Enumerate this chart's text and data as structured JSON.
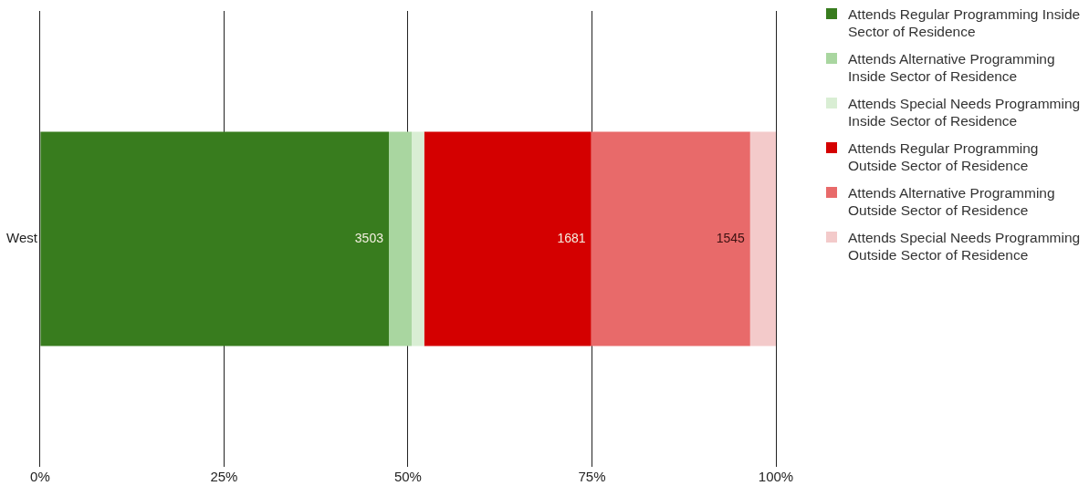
{
  "chart_data": {
    "type": "bar",
    "orientation": "horizontal",
    "stacked": true,
    "categories": [
      "West"
    ],
    "series": [
      {
        "name": "Attends Regular Programming Inside Sector of Residence",
        "color": "#387c1e",
        "values": [
          47.4
        ]
      },
      {
        "name": "Attends Alternative Programming Inside Sector of Residence",
        "color": "#a9d6a0",
        "values": [
          3.1
        ]
      },
      {
        "name": "Attends Special Needs Programming Inside Sector of Residence",
        "color": "#d9eed4",
        "values": [
          1.7
        ]
      },
      {
        "name": "Attends Regular Programming Outside Sector of Residence",
        "color": "#d40000",
        "values": [
          22.7
        ]
      },
      {
        "name": "Attends Alternative Programming Outside Sector of Residence",
        "color": "#e86a6a",
        "values": [
          21.6
        ]
      },
      {
        "name": "Attends Special Needs Programming Outside Sector of Residence",
        "color": "#f3caca",
        "values": [
          3.5
        ]
      }
    ],
    "annotations": [
      {
        "text": "3503",
        "x": 47.4,
        "y": "West"
      },
      {
        "text": "1681",
        "x": 74.9,
        "y": "West"
      },
      {
        "text": "1545",
        "x": 96.5,
        "y": "West"
      }
    ],
    "xlim": [
      0,
      100
    ],
    "xticks": [
      {
        "value": 0,
        "label": "0%"
      },
      {
        "value": 25,
        "label": "25%"
      },
      {
        "value": 50,
        "label": "50%"
      },
      {
        "value": 75,
        "label": "75%"
      },
      {
        "value": 100,
        "label": "100%"
      }
    ],
    "grid": "x",
    "legend": "right"
  }
}
